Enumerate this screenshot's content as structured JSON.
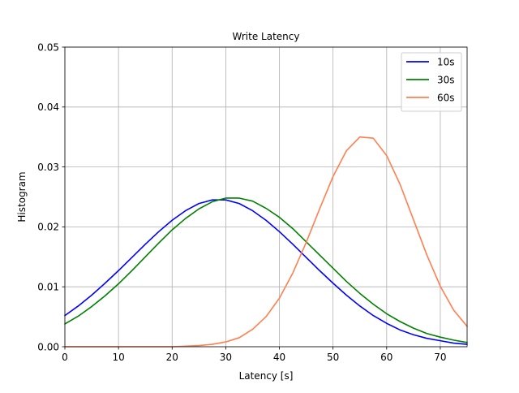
{
  "chart_data": {
    "type": "line",
    "title": "Write Latency",
    "xlabel": "Latency [s]",
    "ylabel": "Histogram",
    "xlim": [
      0,
      75
    ],
    "ylim": [
      0,
      0.05
    ],
    "xticks": [
      0,
      10,
      20,
      30,
      40,
      50,
      60,
      70
    ],
    "yticks": [
      0.0,
      0.01,
      0.02,
      0.03,
      0.04,
      0.05
    ],
    "xtick_labels": [
      "0",
      "10",
      "20",
      "30",
      "40",
      "50",
      "60",
      "70"
    ],
    "ytick_labels": [
      "0.00",
      "0.01",
      "0.02",
      "0.03",
      "0.04",
      "0.05"
    ],
    "grid": true,
    "legend_position": "top-right",
    "x": [
      0,
      2.5,
      5,
      7.5,
      10,
      12.5,
      15,
      17.5,
      20,
      22.5,
      25,
      27.5,
      30,
      32.5,
      35,
      37.5,
      40,
      42.5,
      45,
      47.5,
      50,
      52.5,
      55,
      57.5,
      60,
      62.5,
      65,
      67.5,
      70,
      72.5,
      75
    ],
    "series": [
      {
        "name": "10s",
        "color": "#0000ff",
        "values": [
          0.0052,
          0.0068,
          0.0086,
          0.0106,
          0.0127,
          0.0149,
          0.0171,
          0.0192,
          0.0211,
          0.0227,
          0.0239,
          0.0245,
          0.0245,
          0.0239,
          0.0227,
          0.0211,
          0.0192,
          0.0171,
          0.0149,
          0.0127,
          0.0106,
          0.0086,
          0.0068,
          0.0052,
          0.0039,
          0.0028,
          0.002,
          0.0014,
          0.001,
          0.0006,
          0.0004
        ]
      },
      {
        "name": "30s",
        "color": "#008000",
        "values": [
          0.0038,
          0.0051,
          0.0067,
          0.0085,
          0.0105,
          0.0127,
          0.015,
          0.0173,
          0.0195,
          0.0214,
          0.023,
          0.0242,
          0.0248,
          0.0248,
          0.0243,
          0.0231,
          0.0216,
          0.0197,
          0.0175,
          0.0153,
          0.0131,
          0.0109,
          0.0089,
          0.0071,
          0.0055,
          0.0042,
          0.0031,
          0.0022,
          0.0016,
          0.0011,
          0.0007
        ]
      },
      {
        "name": "60s",
        "color": "#ff7f50",
        "values": [
          0.0,
          0.0,
          0.0,
          0.0,
          0.0,
          0.0,
          0.0,
          0.0,
          0.0,
          0.0001,
          0.0002,
          0.0004,
          0.0008,
          0.0015,
          0.0029,
          0.005,
          0.0081,
          0.0123,
          0.0174,
          0.023,
          0.0284,
          0.0327,
          0.035,
          0.0348,
          0.0319,
          0.0271,
          0.0212,
          0.0153,
          0.0101,
          0.0061,
          0.0034
        ]
      }
    ]
  }
}
